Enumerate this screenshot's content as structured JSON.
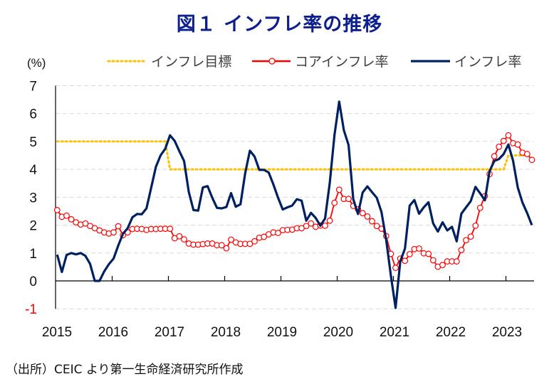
{
  "title": "図１ インフレ率の推移",
  "source": "（出所）CEIC より第一生命経済研究所作成",
  "chart_data": {
    "type": "line",
    "title": "図１ インフレ率の推移",
    "xlabel": "",
    "ylabel": "(%)",
    "ylim": [
      -1,
      7
    ],
    "yticks": [
      7,
      6,
      5,
      4,
      3,
      2,
      1,
      0,
      -1
    ],
    "ytick_colors": {
      "-1": "#ff0000"
    },
    "xtick_labels": [
      "2015",
      "2016",
      "2017",
      "2018",
      "2019",
      "2020",
      "2021",
      "2022",
      "2023"
    ],
    "x_start": "2015-01",
    "x_end": "2023-06",
    "frequency": "monthly",
    "grid": "horizontal dashed",
    "legend_position": "top",
    "colors": {
      "target": "#ffc000",
      "core": "#ff0000",
      "headline": "#002060"
    },
    "series": [
      {
        "name": "インフレ目標",
        "style": "dotted",
        "values": [
          5,
          5,
          5,
          5,
          5,
          5,
          5,
          5,
          5,
          5,
          5,
          5,
          5,
          5,
          5,
          5,
          5,
          5,
          5,
          5,
          5,
          5,
          5,
          5,
          4,
          4,
          4,
          4,
          4,
          4,
          4,
          4,
          4,
          4,
          4,
          4,
          4,
          4,
          4,
          4,
          4,
          4,
          4,
          4,
          4,
          4,
          4,
          4,
          4,
          4,
          4,
          4,
          4,
          4,
          4,
          4,
          4,
          4,
          4,
          4,
          4,
          4,
          4,
          4,
          4,
          4,
          4,
          4,
          4,
          4,
          4,
          4,
          4,
          4,
          4,
          4,
          4,
          4,
          4,
          4,
          4,
          4,
          4,
          4,
          4,
          4,
          4,
          4,
          4,
          4,
          4,
          4,
          4,
          4,
          4,
          4,
          4.5,
          4.5,
          4.5,
          4.5,
          4.5,
          4.5
        ]
      },
      {
        "name": "コアインフレ率",
        "style": "line-circle",
        "values": [
          2.54,
          2.3,
          2.34,
          2.21,
          2.1,
          2.02,
          2.06,
          1.97,
          1.89,
          1.81,
          1.74,
          1.7,
          1.74,
          1.96,
          1.64,
          1.74,
          1.86,
          1.87,
          1.86,
          1.83,
          1.86,
          1.86,
          1.87,
          1.87,
          1.87,
          1.53,
          1.6,
          1.49,
          1.34,
          1.3,
          1.3,
          1.32,
          1.34,
          1.34,
          1.28,
          1.28,
          1.17,
          1.48,
          1.38,
          1.33,
          1.33,
          1.33,
          1.42,
          1.55,
          1.58,
          1.67,
          1.74,
          1.72,
          1.82,
          1.83,
          1.84,
          1.89,
          1.89,
          1.97,
          2.06,
          1.94,
          1.99,
          1.98,
          2.16,
          2.8,
          3.27,
          2.94,
          2.94,
          2.69,
          2.57,
          2.43,
          2.31,
          2.14,
          1.97,
          1.87,
          1.61,
          0.97,
          0.47,
          0.8,
          0.72,
          0.96,
          1.14,
          1.16,
          0.99,
          0.97,
          0.74,
          0.51,
          0.57,
          0.7,
          0.7,
          0.7,
          1.11,
          1.46,
          1.59,
          1.98,
          2.62,
          3.04,
          3.83,
          4.47,
          4.81,
          5.02,
          5.22,
          4.94,
          4.89,
          4.6,
          4.55,
          4.34
        ]
      },
      {
        "name": "インフレ率",
        "style": "line",
        "values": [
          0.94,
          0.32,
          0.93,
          1.0,
          0.95,
          1.0,
          0.9,
          0.61,
          0.0,
          0.0,
          0.34,
          0.6,
          0.8,
          1.27,
          1.69,
          1.89,
          2.28,
          2.4,
          2.39,
          2.6,
          3.34,
          4.09,
          4.5,
          4.74,
          5.22,
          5.02,
          4.65,
          4.3,
          3.19,
          2.54,
          2.52,
          3.35,
          3.4,
          2.98,
          2.62,
          2.6,
          2.65,
          3.15,
          2.66,
          2.75,
          3.86,
          4.67,
          4.46,
          3.98,
          3.98,
          3.89,
          3.46,
          2.98,
          2.56,
          2.64,
          2.7,
          2.93,
          2.88,
          2.16,
          2.44,
          2.26,
          1.98,
          2.24,
          3.52,
          5.23,
          6.43,
          5.4,
          4.87,
          2.93,
          2.4,
          3.17,
          3.39,
          3.18,
          2.98,
          2.47,
          1.48,
          0.19,
          -0.97,
          0.7,
          1.16,
          2.7,
          2.9,
          2.41,
          2.64,
          2.82,
          2.06,
          1.77,
          2.1,
          1.81,
          1.94,
          1.42,
          2.41,
          2.64,
          2.86,
          3.37,
          3.14,
          2.89,
          3.94,
          4.3,
          4.37,
          4.55,
          4.89,
          4.31,
          3.35,
          2.81,
          2.43,
          2.0
        ]
      }
    ]
  }
}
